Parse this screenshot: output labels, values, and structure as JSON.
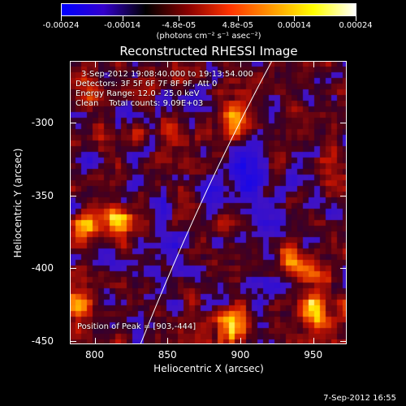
{
  "colorbar": {
    "tick_labels": [
      "-0.00024",
      "-0.00014",
      "-4.8e-05",
      "4.8e-05",
      "0.00014",
      "0.00024"
    ],
    "tick_values": [
      -0.00024,
      -0.00014,
      -4.8e-05,
      4.8e-05,
      0.00014,
      0.00024
    ],
    "range": [
      -0.00024,
      0.00024
    ],
    "units": "(photons cm⁻² s⁻¹ asec⁻²)",
    "colors": [
      "#0000ff",
      "#3300cc",
      "#000000",
      "#880000",
      "#ff3300",
      "#ff9900",
      "#ffff00",
      "#ffffff"
    ]
  },
  "plot": {
    "title": "Reconstructed RHESSI Image",
    "annotations": {
      "time_range": "3-Sep-2012 19:08:40.000 to 19:13:54.000",
      "detectors": "Detectors: 3F 5F 6F 7F 8F 9F, Att 0",
      "energy_range": "Energy Range: 12.0 - 25.0 keV",
      "method": "Clean    Total counts: 9.09E+03",
      "peak": "Position of Peak = [903,-444]"
    },
    "xlabel": "Heliocentric X (arcsec)",
    "ylabel": "Heliocentric Y (arcsec)",
    "x_ticks": [
      "800",
      "850",
      "900",
      "950"
    ],
    "x_tick_values": [
      800,
      850,
      900,
      950
    ],
    "y_ticks": [
      "-300",
      "-350",
      "-400",
      "-450"
    ],
    "y_tick_values": [
      -300,
      -350,
      -400,
      -450
    ],
    "xlim": [
      783,
      973
    ],
    "ylim": [
      -452,
      -258
    ],
    "peak_position": [
      903,
      -444
    ]
  },
  "footer": {
    "date": "7-Sep-2012 16:55"
  }
}
